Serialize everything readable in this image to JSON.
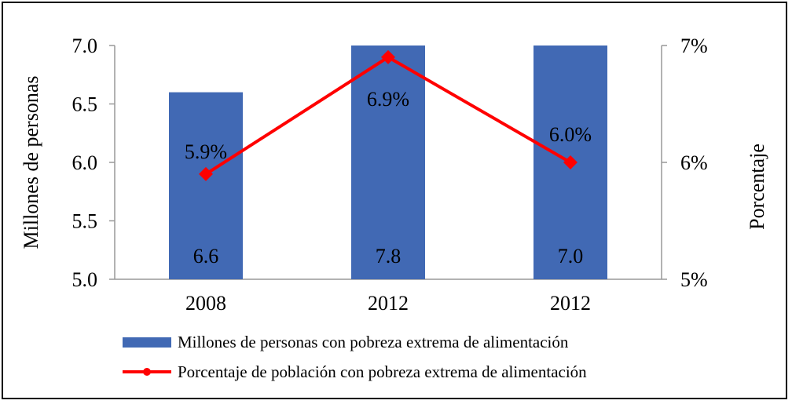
{
  "chart_data": {
    "type": "bar",
    "categories": [
      "2008",
      "2012",
      "2012"
    ],
    "series": [
      {
        "name": "Millones de personas con pobreza extrema de alimentación",
        "kind": "bar",
        "axis": "left",
        "values": [
          6.6,
          7.8,
          7.0
        ],
        "data_labels": [
          "6.6",
          "7.8",
          "7.0"
        ],
        "color": "#4169B4"
      },
      {
        "name": "Porcentaje de población con pobreza extrema de alimentación",
        "kind": "line",
        "axis": "right",
        "values": [
          5.9,
          6.9,
          6.0
        ],
        "data_labels": [
          "5.9%",
          "6.9%",
          "6.0%"
        ],
        "color": "#FF0000"
      }
    ],
    "ylabel_left": "Millones de personas",
    "ylabel_right": "Porcentaje",
    "ylim_left": [
      5.0,
      7.0
    ],
    "ylim_right": [
      5,
      7
    ],
    "yticks_left": [
      "5.0",
      "5.5",
      "6.0",
      "6.5",
      "7.0"
    ],
    "yticks_right": [
      "5%",
      "6%",
      "7%"
    ],
    "grid": false,
    "legend_position": "bottom"
  }
}
